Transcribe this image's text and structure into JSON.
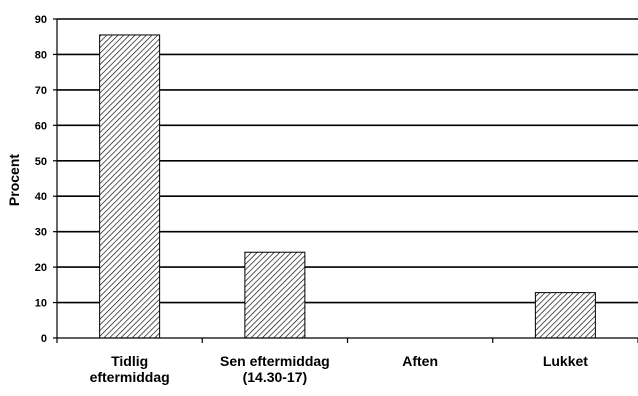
{
  "chart_data": {
    "type": "bar",
    "categories": [
      [
        "Tidlig",
        "eftermiddag"
      ],
      [
        "Sen eftermiddag",
        "(14.30-17)"
      ],
      [
        "Aften"
      ],
      [
        "Lukket"
      ]
    ],
    "values": [
      85.5,
      24.2,
      0,
      12.8
    ],
    "title": "",
    "xlabel": "",
    "ylabel": "Procent",
    "ylim": [
      0,
      90
    ],
    "yticks": [
      0,
      10,
      20,
      30,
      40,
      50,
      60,
      70,
      80,
      90
    ],
    "grid": true,
    "legend": "none",
    "colors": {
      "bar_fill": "#ffffff",
      "bar_hatch": "#000000",
      "axis": "#000000",
      "grid": "#000000"
    }
  }
}
